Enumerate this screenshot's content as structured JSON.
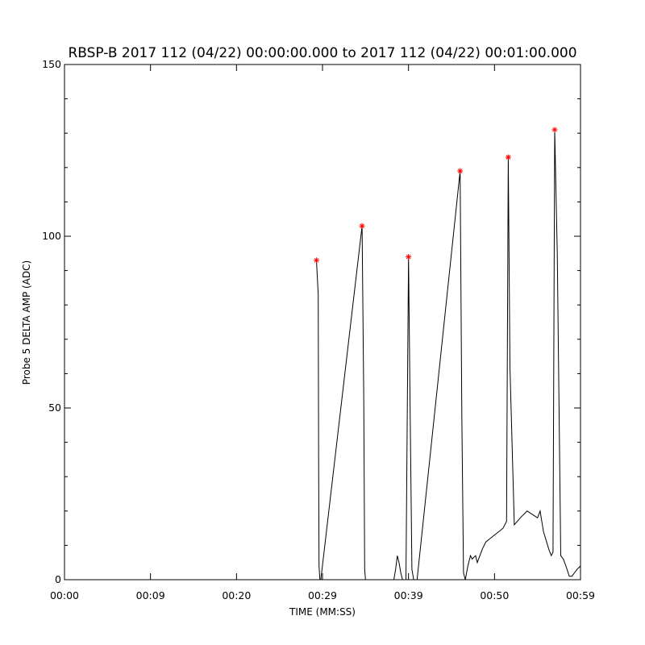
{
  "chart_data": {
    "type": "line",
    "title": "RBSP-B 2017 112 (04/22) 00:00:00.000 to 2017 112 (04/22) 00:01:00.000",
    "xlabel": "TIME (MM:SS)",
    "ylabel": "Probe 5 DELTA AMP (ADC)",
    "xlim": [
      0,
      60
    ],
    "ylim": [
      0,
      150
    ],
    "x_tick_values": [
      0,
      10,
      20,
      30,
      40,
      50,
      60
    ],
    "x_tick_labels": [
      "00:00",
      "00:09",
      "00:20",
      "00:29",
      "00:39",
      "00:50",
      "00:59"
    ],
    "y_tick_values": [
      0,
      50,
      100,
      150
    ],
    "y_tick_labels": [
      "0",
      "50",
      "100",
      "150"
    ],
    "y_minor_tick_values": [
      10,
      20,
      30,
      40,
      60,
      70,
      80,
      90,
      110,
      120,
      130,
      140
    ],
    "grid": false,
    "legend": "none",
    "line_color": "#000000",
    "marker_color": "#ff0000",
    "marker_symbol": "*",
    "series": [
      {
        "x": [
          29.3,
          29.5,
          29.55,
          29.6,
          29.7,
          29.8,
          34.6,
          34.8,
          34.9,
          35.0,
          35.1,
          38.3,
          38.5,
          38.7,
          38.9,
          39.1,
          39.3,
          39.7,
          40.0,
          40.2,
          40.4,
          40.6,
          40.8,
          41.0,
          46.0,
          46.2,
          46.4,
          46.6,
          46.9,
          47.2,
          47.4,
          47.8,
          48.0,
          48.3,
          48.6,
          49.0,
          49.5,
          50.0,
          50.5,
          51.0,
          51.2,
          51.4,
          51.6,
          51.8,
          52.3,
          53.0,
          53.8,
          54.4,
          55.0,
          55.3,
          55.7,
          56.3,
          56.6,
          56.8,
          57.0,
          57.3,
          57.7,
          58.0,
          58.3,
          58.7,
          59.0,
          59.3,
          59.6,
          60.0
        ],
        "y": [
          93,
          83,
          35,
          4,
          0,
          0,
          103,
          52,
          3,
          0,
          0,
          0,
          3,
          7,
          5,
          2,
          0,
          0,
          94,
          47,
          3,
          0,
          0,
          0,
          119,
          48,
          2,
          0,
          4,
          7,
          6,
          7,
          5,
          7,
          9,
          11,
          12,
          13,
          14,
          15,
          16,
          17,
          123,
          62,
          16,
          18,
          20,
          19,
          18,
          20,
          14,
          9,
          7,
          8,
          131,
          95,
          7,
          6,
          4,
          1,
          1,
          2,
          3,
          4
        ]
      }
    ],
    "markers": {
      "x": [
        29.3,
        34.6,
        40.0,
        46.0,
        51.6,
        57.0
      ],
      "y": [
        93,
        103,
        94,
        119,
        123,
        131
      ]
    }
  }
}
